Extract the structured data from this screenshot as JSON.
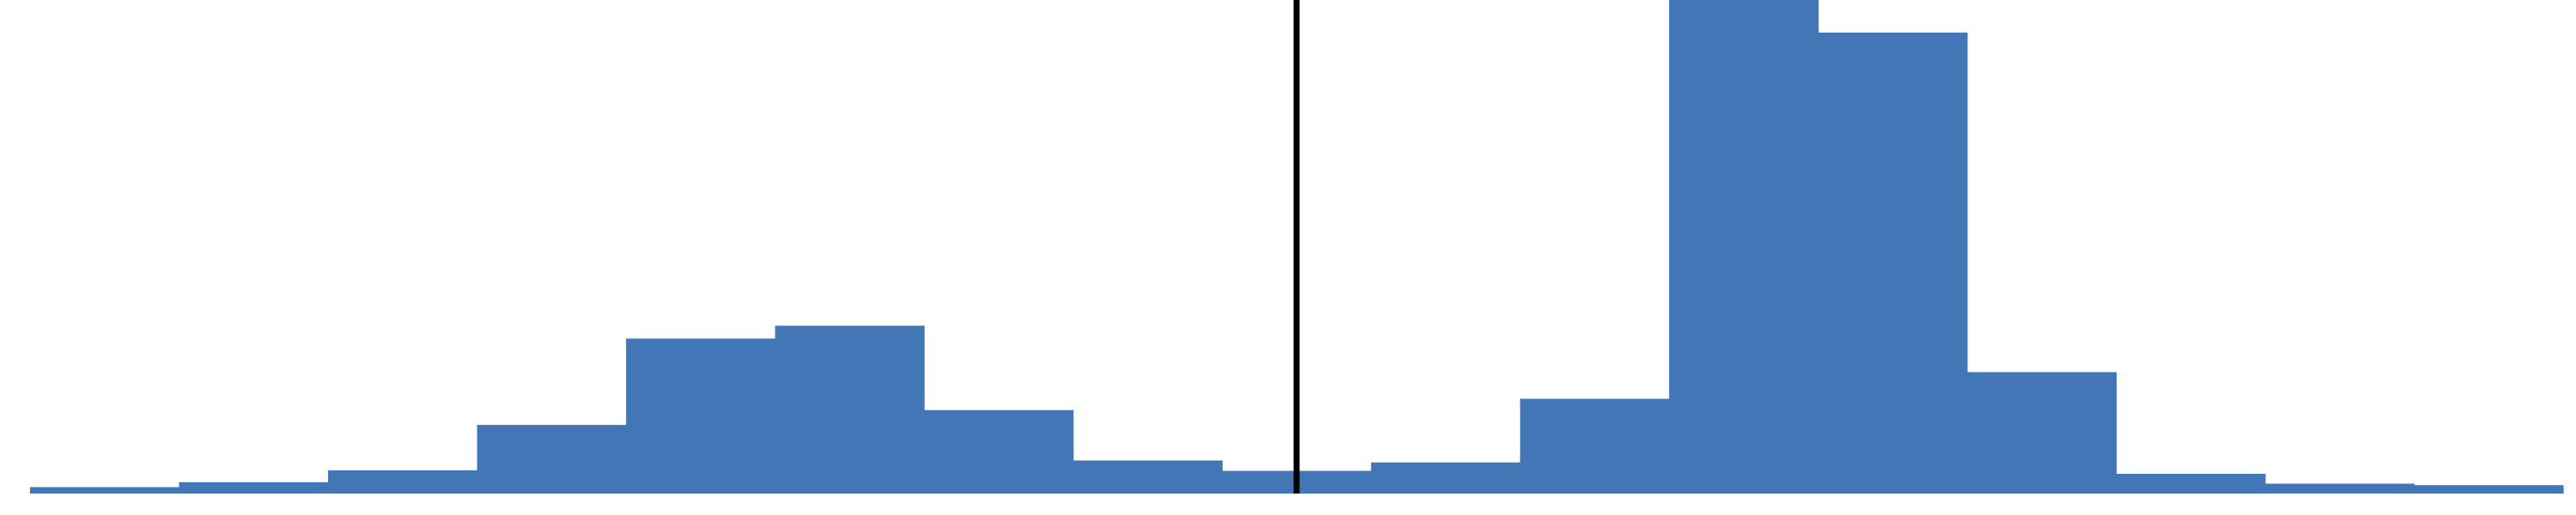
{
  "chart_data": {
    "type": "bar",
    "title": "",
    "xlabel": "",
    "ylabel": "",
    "x_axis": "hidden",
    "y_axis": "hidden",
    "grid": false,
    "legend": "none",
    "bar_color": "#4276B7",
    "reference_line_color": "#000000",
    "ylim": [
      0,
      100
    ],
    "reference_line": {
      "position": 8.5
    },
    "series": [
      {
        "values": [
          1.3,
          2.3,
          4.7,
          13.9,
          31.4,
          34.0,
          16.9,
          6.7,
          4.6,
          6.3,
          19.2,
          100,
          93.4,
          24.6,
          4.0,
          2.0,
          1.7
        ]
      }
    ]
  }
}
